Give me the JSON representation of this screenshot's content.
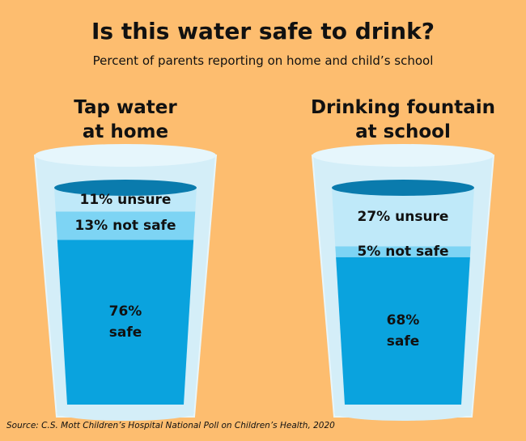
{
  "chart_data": {
    "type": "glass",
    "title": "Is this water safe to drink?",
    "subtitle": "Percent of parents reporting on home and child’s school",
    "source": "Source: C.S. Mott Children’s Hospital National Poll on Children’s Health, 2020",
    "categories": [
      "Tap water\nat home",
      "Drinking fountain\nat school"
    ],
    "series": [
      {
        "name": "safe",
        "color": "#0aa3de",
        "values": [
          76,
          68
        ],
        "value_labels": [
          "76%\nsafe",
          "68%\nsafe"
        ]
      },
      {
        "name": "not safe",
        "color": "#7dd4f4",
        "values": [
          13,
          5
        ],
        "value_labels": [
          "13% not safe",
          "5% not safe"
        ]
      },
      {
        "name": "unsure",
        "color": "#bfe9f9",
        "values": [
          11,
          27
        ],
        "value_labels": [
          "11% unsure",
          "27% unsure"
        ]
      }
    ],
    "ylim": [
      0,
      100
    ]
  }
}
